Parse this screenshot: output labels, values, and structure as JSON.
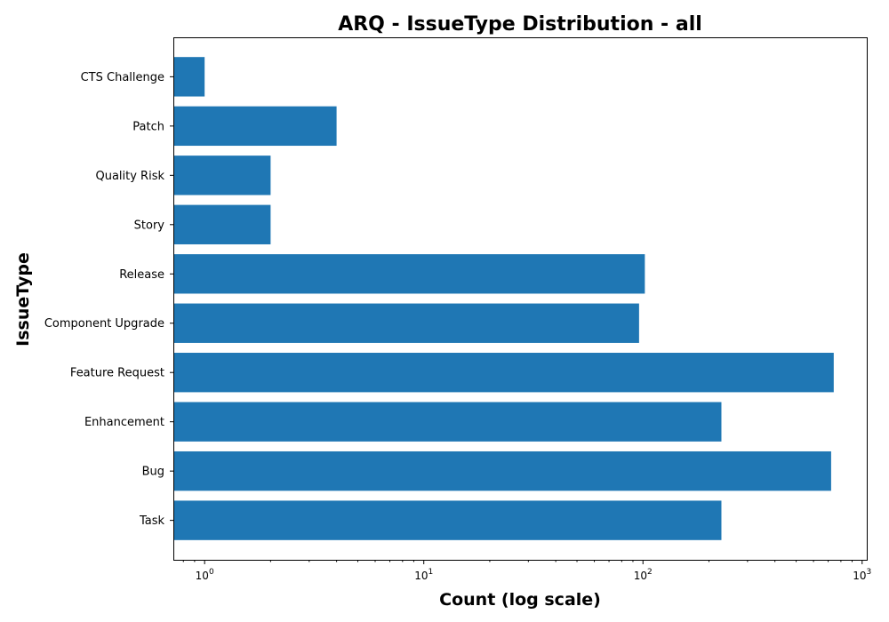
{
  "chart_data": {
    "type": "bar",
    "orientation": "horizontal",
    "title": "ARQ - IssueType Distribution - all",
    "xlabel": "Count (log scale)",
    "ylabel": "IssueType",
    "x_scale": "log",
    "xlim": [
      0.72,
      1050
    ],
    "x_ticks": [
      {
        "value": 1,
        "base": "10",
        "exp": "0"
      },
      {
        "value": 10,
        "base": "10",
        "exp": "1"
      },
      {
        "value": 100,
        "base": "10",
        "exp": "2"
      },
      {
        "value": 1000,
        "base": "10",
        "exp": "3"
      }
    ],
    "categories": [
      "Task",
      "Bug",
      "Enhancement",
      "Feature Request",
      "Component Upgrade",
      "Release",
      "Story",
      "Quality Risk",
      "Patch",
      "CTS Challenge"
    ],
    "values": [
      228,
      722,
      228,
      742,
      96,
      102,
      2,
      2,
      4,
      1
    ],
    "bar_color": "#1f77b4",
    "grid": false,
    "legend": "none"
  }
}
